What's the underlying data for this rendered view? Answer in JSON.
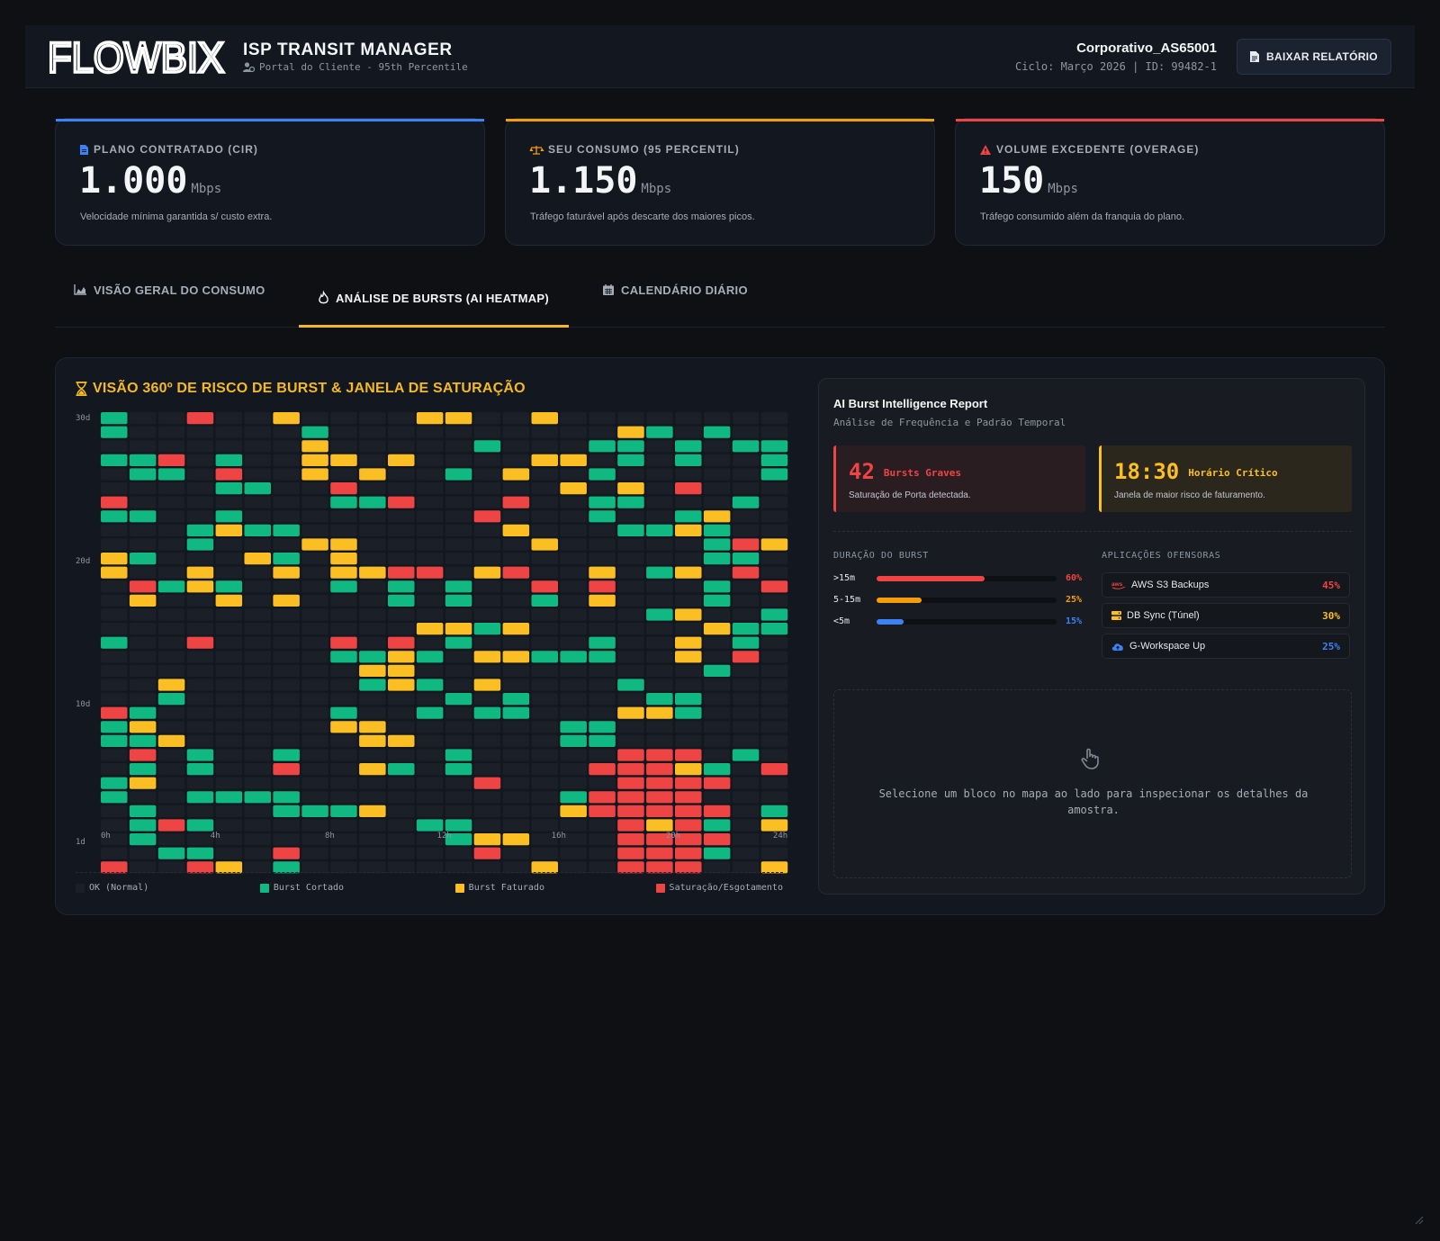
{
  "header": {
    "logo_text": "FLOWBIX",
    "title": "ISP TRANSIT MANAGER",
    "subtitle": "Portal do Cliente - 95th Percentile",
    "client_name": "Corporativo_AS65001",
    "client_cycle": "Ciclo: Março 2026 | ID: 99482-1",
    "download_label": "BAIXAR RELATÓRIO"
  },
  "kpis": [
    {
      "label": "PLANO CONTRATADO (CIR)",
      "value": "1.000",
      "unit": "Mbps",
      "desc": "Velocidade mínima garantida s/ custo extra.",
      "color": "#3b82f6",
      "icon": "document-icon"
    },
    {
      "label": "SEU CONSUMO (95 PERCENTIL)",
      "value": "1.150",
      "unit": "Mbps",
      "desc": "Tráfego faturável após descarte dos maiores picos.",
      "color": "#f59e0b",
      "icon": "scale-icon"
    },
    {
      "label": "VOLUME EXCEDENTE (OVERAGE)",
      "value": "150",
      "unit": "Mbps",
      "desc": "Tráfego consumido além da franquia do plano.",
      "color": "#ef4444",
      "icon": "warning-icon"
    }
  ],
  "tabs": [
    {
      "label": "VISÃO GERAL DO CONSUMO",
      "icon": "chart-area-icon",
      "active": false
    },
    {
      "label": "ANÁLISE DE BURSTS (AI HEATMAP)",
      "icon": "fire-icon",
      "active": true
    },
    {
      "label": "CALENDÁRIO DIÁRIO",
      "icon": "calendar-icon",
      "active": false
    }
  ],
  "panel": {
    "title": "VISÃO 360º DE RISCO DE BURST & JANELA DE SATURAÇÃO"
  },
  "chart_data": {
    "type": "heatmap",
    "x_labels": [
      "0h",
      "4h",
      "8h",
      "12h",
      "16h",
      "20h",
      "24h"
    ],
    "y_labels": [
      "30d",
      "20d",
      "10d",
      "1d"
    ],
    "levels": {
      "0": "OK (Normal)",
      "1": "Burst Cortado",
      "2": "Burst Faturado",
      "3": "Saturação/Esgotamento"
    },
    "colors": {
      "0": "#1b1f27",
      "1": "#10b981",
      "2": "#fbbf24",
      "3": "#ef4444"
    },
    "rows_top_to_bottom": [
      "100300200002200200000000",
      "100000010000000000210100",
      "000000020000010001101011",
      "113010022020000220101001",
      "011030020200102001000001",
      "000011003000000020203000",
      "300000001130003001100010",
      "110010000000030001001200",
      "000121100000002000112100",
      "000100022000000200000132",
      "210002102000000000000110",
      "200200202233023002012030",
      "031210001010100303000103",
      "020020200010100102000100",
      "000000000000000000012001",
      "000000000002212000000211",
      "100300003030100001002010",
      "000000001121022111002030",
      "000000000220000000000100",
      "002000000121020000100000",
      "001000000000101000011000",
      "310000001001011000221000",
      "120000002200000011000000",
      "112000000220000011000000",
      "030100100000100000333010",
      "010100300210100003332103",
      "120000000000030000333300",
      "100111100000000013333000",
      "010000111200000023333301",
      "013100000001100000323102",
      "010000000000122000333300",
      "001100300000030000333100",
      "300320100000000200333002"
    ]
  },
  "legend": [
    {
      "label": "OK (Normal)",
      "color": "#1b1f27"
    },
    {
      "label": "Burst Cortado",
      "color": "#10b981"
    },
    {
      "label": "Burst Faturado",
      "color": "#fbbf24"
    },
    {
      "label": "Saturação/Esgotamento",
      "color": "#ef4444"
    }
  ],
  "ai_report": {
    "title": "AI Burst Intelligence Report",
    "subtitle": "Análise de Frequência e Padrão Temporal",
    "stat1": {
      "value": "42",
      "tag": "Bursts Graves",
      "desc": "Saturação de Porta detectada.",
      "color": "#ef4444"
    },
    "stat2": {
      "value": "18:30",
      "tag": "Horário Crítico",
      "desc": "Janela de maior risco de faturamento.",
      "color": "#fbbf24"
    },
    "duration_label": "DURAÇÃO DO BURST",
    "durations": [
      {
        "label": ">15m",
        "pct": "60%",
        "fraction": 0.6,
        "color": "#ef4444"
      },
      {
        "label": "5-15m",
        "pct": "25%",
        "fraction": 0.25,
        "color": "#f59e0b"
      },
      {
        "label": "<5m",
        "pct": "15%",
        "fraction": 0.15,
        "color": "#3b82f6"
      }
    ],
    "apps_label": "APLICAÇÕES OFENSORAS",
    "apps": [
      {
        "name": "AWS S3 Backups",
        "pct": "45%",
        "color": "#ef4444",
        "icon": "aws-icon",
        "icon_text": "aws"
      },
      {
        "name": "DB Sync (Túnel)",
        "pct": "30%",
        "color": "#fbbf24",
        "icon": "database-icon"
      },
      {
        "name": "G-Workspace Up",
        "pct": "25%",
        "color": "#3b82f6",
        "icon": "cloud-upload-icon"
      }
    ],
    "inspect_text": "Selecione um bloco no mapa ao lado para inspecionar os detalhes da amostra."
  }
}
